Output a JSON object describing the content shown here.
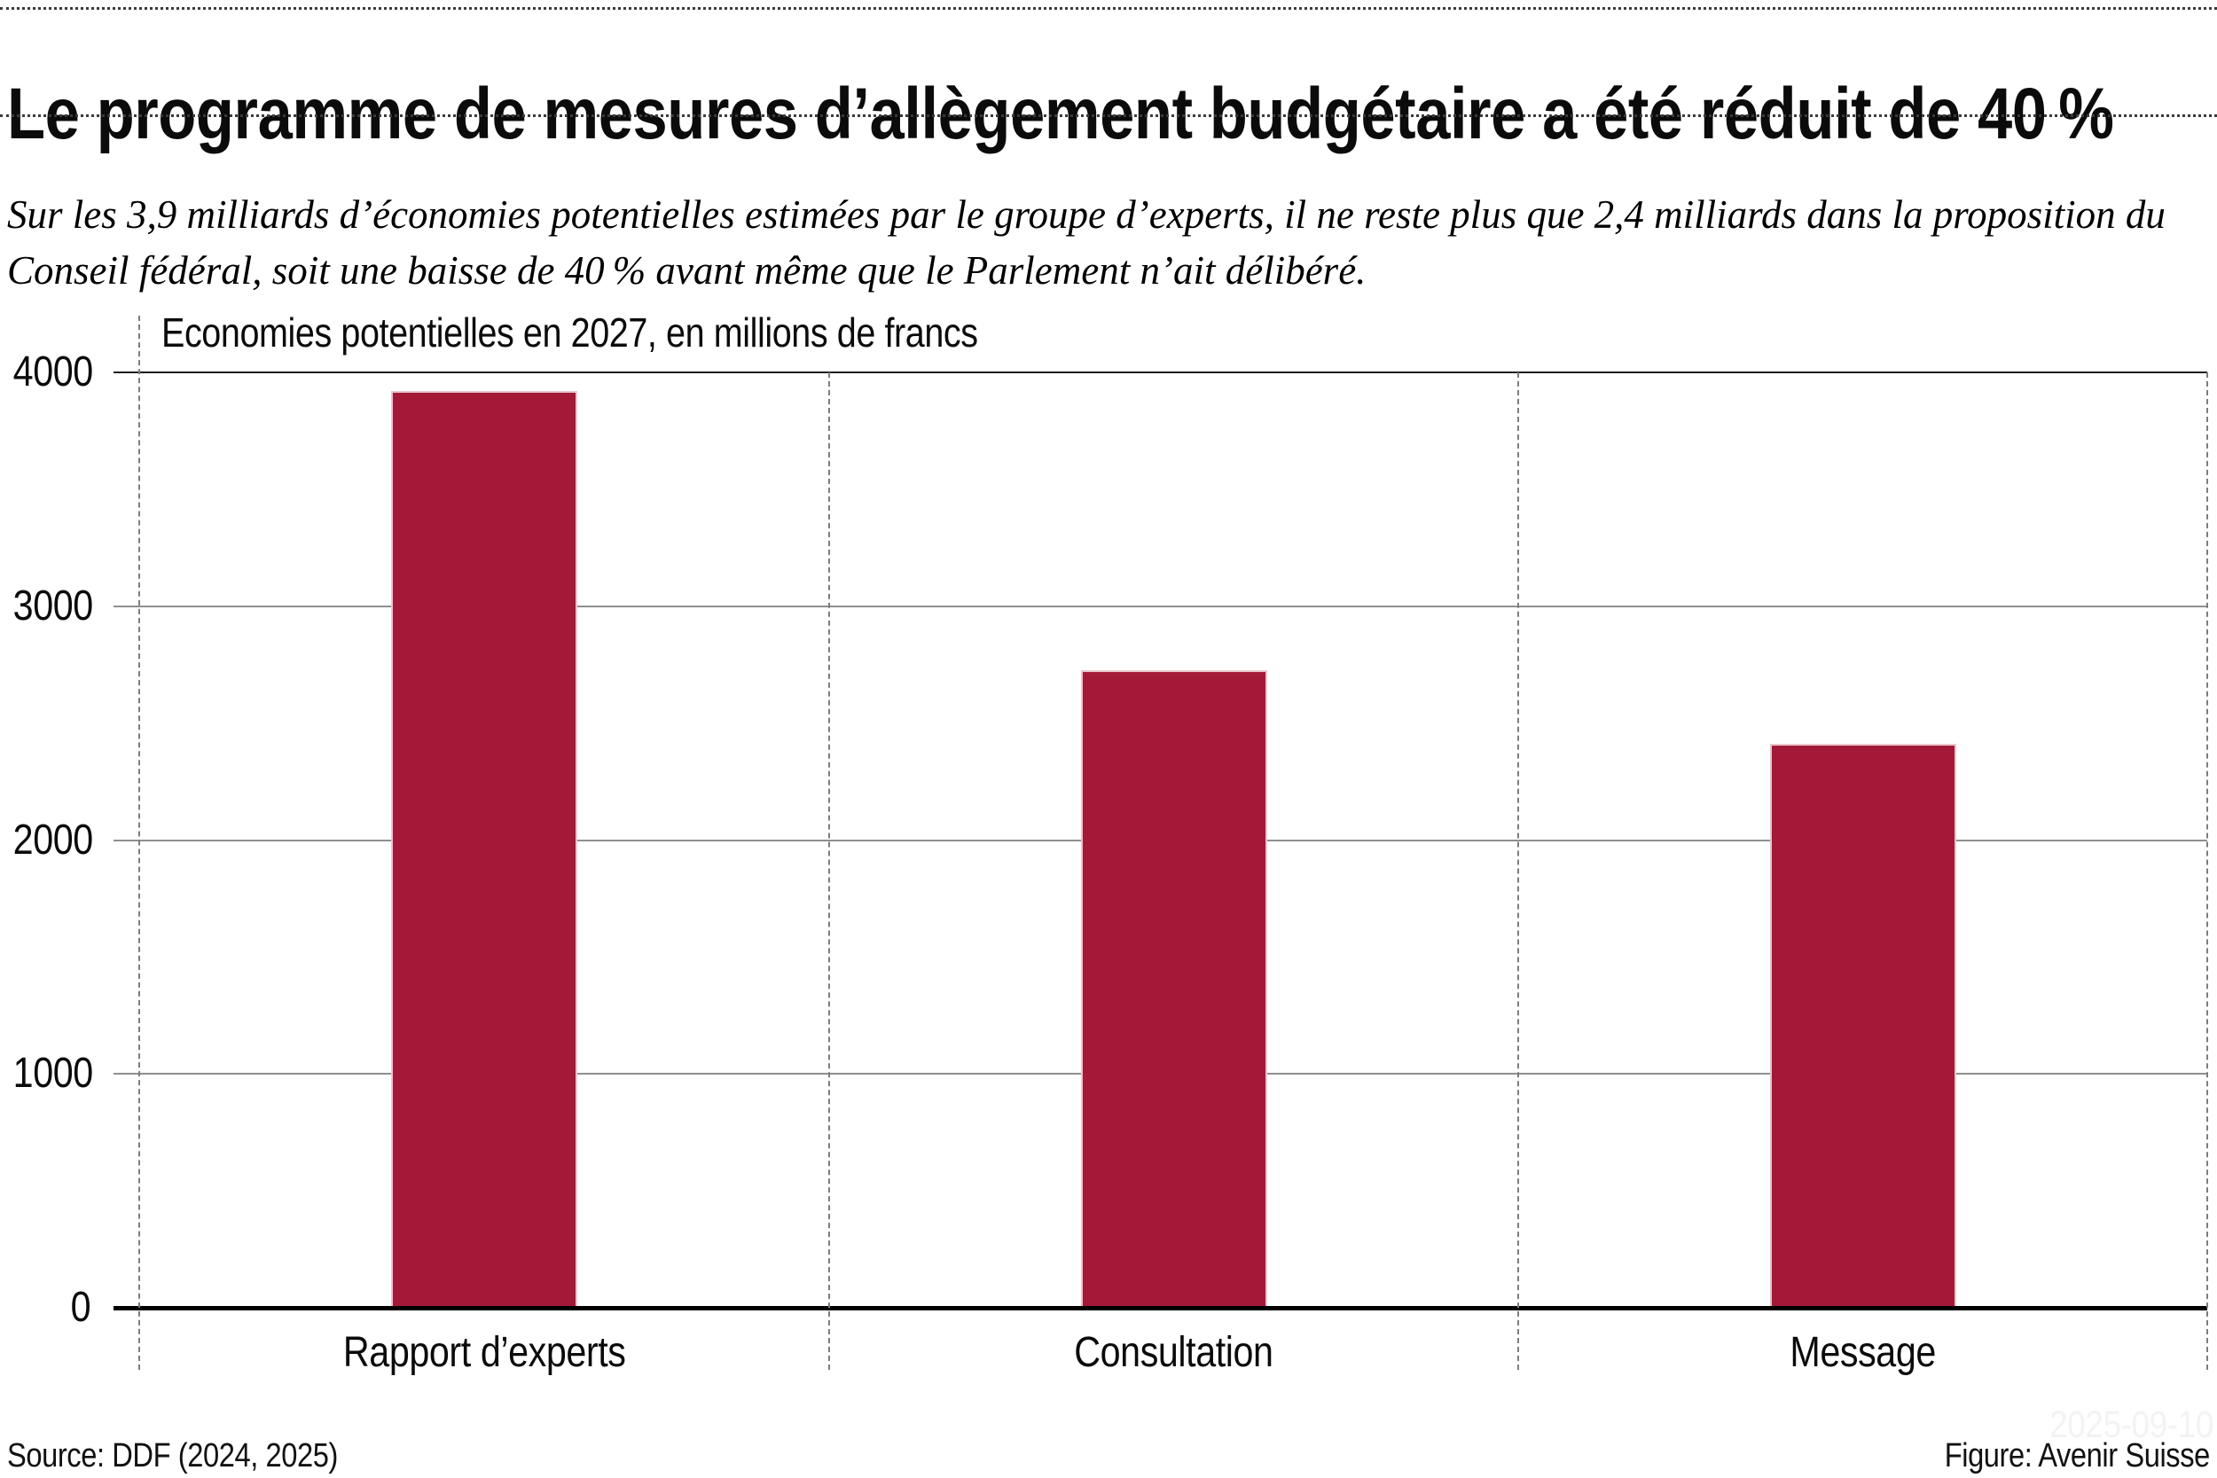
{
  "header": {
    "title": "Le programme de mesures d’allègement budgétaire a été réduit de 40 %",
    "subtitle": "Sur les 3,9 milliards d’économies potentielles estimées par le groupe d’experts, il ne reste plus que 2,4 milliards dans la proposition du Conseil fédéral, soit une baisse de 40 % avant même que le Parlement n’ait délibéré."
  },
  "chart_data": {
    "type": "bar",
    "title": "Economies potentielles en 2027, en millions de francs",
    "categories": [
      "Rapport d’experts",
      "Consultation",
      "Message"
    ],
    "values": [
      3920,
      2725,
      2410
    ],
    "ylim": [
      0,
      4000
    ],
    "yticks": [
      0,
      1000,
      2000,
      3000,
      4000
    ],
    "bar_color": "#A41937",
    "grid": true,
    "gridline_color": "#8f8f8f",
    "separator_style": "dashed",
    "legend_position": "none"
  },
  "footer": {
    "source": "Source: DDF (2024, 2025)",
    "credit": "Figure: Avenir Suisse",
    "watermark": "2025-09-10"
  }
}
